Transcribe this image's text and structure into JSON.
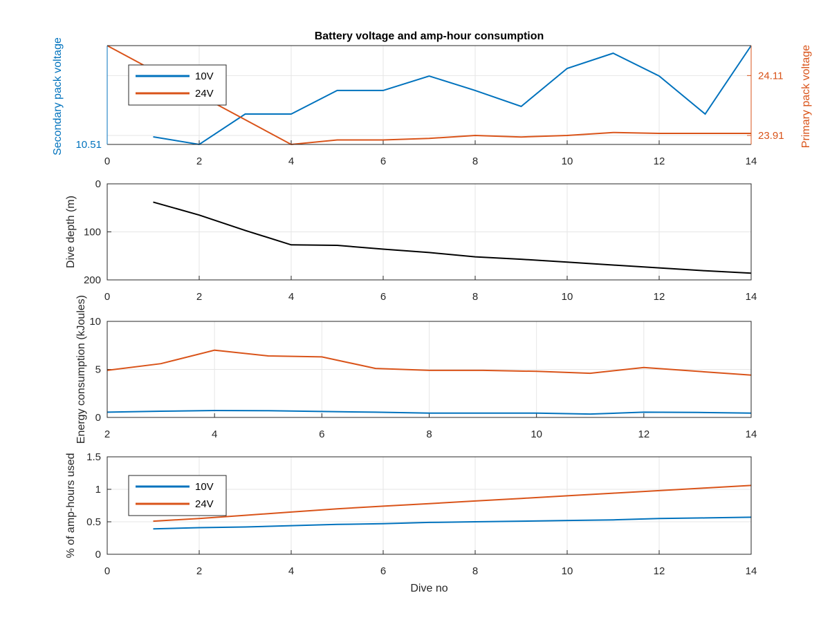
{
  "chart_data": [
    {
      "type": "line",
      "title": "Battery voltage and amp-hour consumption",
      "xlabel": "",
      "ylabel": "Secondary pack voltage",
      "ylabel_right": "Primary pack voltage",
      "xlim": [
        0,
        14
      ],
      "xticks": [
        "0",
        "2",
        "4",
        "6",
        "8",
        "10",
        "12",
        "14"
      ],
      "ylim_left": [
        10.51,
        10.64
      ],
      "yticks_left": [
        {
          "value": 10.51,
          "label": "10.51"
        }
      ],
      "ylim_right": [
        23.88,
        24.21
      ],
      "yticks_right": [
        {
          "value": 23.91,
          "label": "23.91"
        },
        {
          "value": 24.11,
          "label": "24.11"
        }
      ],
      "grid": true,
      "legend": {
        "placement": "top-left",
        "entries": [
          "10V",
          "24V"
        ]
      },
      "series": [
        {
          "name": "10V",
          "axis": "left",
          "color": "#0072BD",
          "x": [
            1,
            2,
            3,
            4,
            5,
            6,
            7,
            8,
            9,
            10,
            11,
            12,
            13,
            14
          ],
          "y": [
            10.52,
            10.51,
            10.55,
            10.55,
            10.581,
            10.581,
            10.6,
            10.581,
            10.56,
            10.61,
            10.63,
            10.6,
            10.55,
            10.64
          ]
        },
        {
          "name": "24V",
          "axis": "right",
          "color": "#D95319",
          "x": [
            0,
            4,
            5,
            6,
            7,
            8,
            9,
            10,
            11,
            12,
            13,
            14
          ],
          "y": [
            24.21,
            23.88,
            23.895,
            23.895,
            23.9,
            23.91,
            23.905,
            23.91,
            23.92,
            23.917,
            23.917,
            23.917
          ]
        }
      ]
    },
    {
      "type": "line",
      "title": "",
      "xlabel": "",
      "ylabel": "Dive depth (m)",
      "xlim": [
        0,
        14
      ],
      "xticks": [
        "0",
        "2",
        "4",
        "6",
        "8",
        "10",
        "12",
        "14"
      ],
      "ylim": [
        0,
        200
      ],
      "y_reversed": true,
      "yticks": [
        "0",
        "100",
        "200"
      ],
      "grid": true,
      "series": [
        {
          "color": "#000000",
          "x": [
            1,
            2,
            3,
            4,
            5,
            6,
            7,
            8,
            9,
            10,
            11,
            12,
            13,
            14
          ],
          "y": [
            38,
            65,
            97,
            127,
            128,
            136,
            143,
            152,
            157,
            163,
            169,
            175,
            181,
            186
          ]
        }
      ]
    },
    {
      "type": "line",
      "title": "",
      "xlabel": "",
      "ylabel": "Energy consumption (kJoules)",
      "xlim": [
        2,
        14
      ],
      "xticks": [
        "2",
        "4",
        "6",
        "8",
        "10",
        "12",
        "14"
      ],
      "ylim": [
        0,
        10
      ],
      "yticks": [
        "0",
        "5",
        "10"
      ],
      "grid": true,
      "series": [
        {
          "color": "#D95319",
          "x": [
            2,
            3,
            4,
            5,
            6,
            7,
            8,
            9,
            10,
            11,
            12,
            13,
            14
          ],
          "y": [
            4.9,
            5.6,
            7.0,
            6.4,
            6.3,
            5.1,
            4.9,
            4.9,
            4.8,
            4.6,
            5.2,
            4.8,
            4.4
          ]
        },
        {
          "color": "#0072BD",
          "x": [
            2,
            3,
            4,
            5,
            6,
            7,
            8,
            9,
            10,
            11,
            12,
            13,
            14
          ],
          "y": [
            0.55,
            0.65,
            0.72,
            0.7,
            0.62,
            0.55,
            0.45,
            0.45,
            0.45,
            0.35,
            0.55,
            0.52,
            0.45
          ]
        }
      ]
    },
    {
      "type": "line",
      "title": "",
      "xlabel": "Dive no",
      "ylabel": "% of amp-hours used",
      "xlim": [
        0,
        14
      ],
      "xticks": [
        "0",
        "2",
        "4",
        "6",
        "8",
        "10",
        "12",
        "14"
      ],
      "ylim": [
        0,
        1.5
      ],
      "yticks": [
        "0",
        "0.5",
        "1",
        "1.5"
      ],
      "grid": true,
      "legend": {
        "placement": "top-left",
        "entries": [
          "10V",
          "24V"
        ]
      },
      "series": [
        {
          "name": "10V",
          "color": "#0072BD",
          "x": [
            1,
            2,
            3,
            4,
            5,
            6,
            7,
            8,
            9,
            10,
            11,
            12,
            13,
            14
          ],
          "y": [
            0.39,
            0.41,
            0.42,
            0.44,
            0.46,
            0.47,
            0.49,
            0.5,
            0.51,
            0.52,
            0.53,
            0.55,
            0.56,
            0.57
          ]
        },
        {
          "name": "24V",
          "color": "#D95319",
          "x": [
            1,
            2,
            3,
            4,
            5,
            6,
            7,
            8,
            9,
            10,
            11,
            12,
            13,
            14
          ],
          "y": [
            0.51,
            0.55,
            0.6,
            0.65,
            0.7,
            0.74,
            0.78,
            0.82,
            0.86,
            0.9,
            0.94,
            0.98,
            1.02,
            1.06
          ]
        }
      ]
    }
  ]
}
